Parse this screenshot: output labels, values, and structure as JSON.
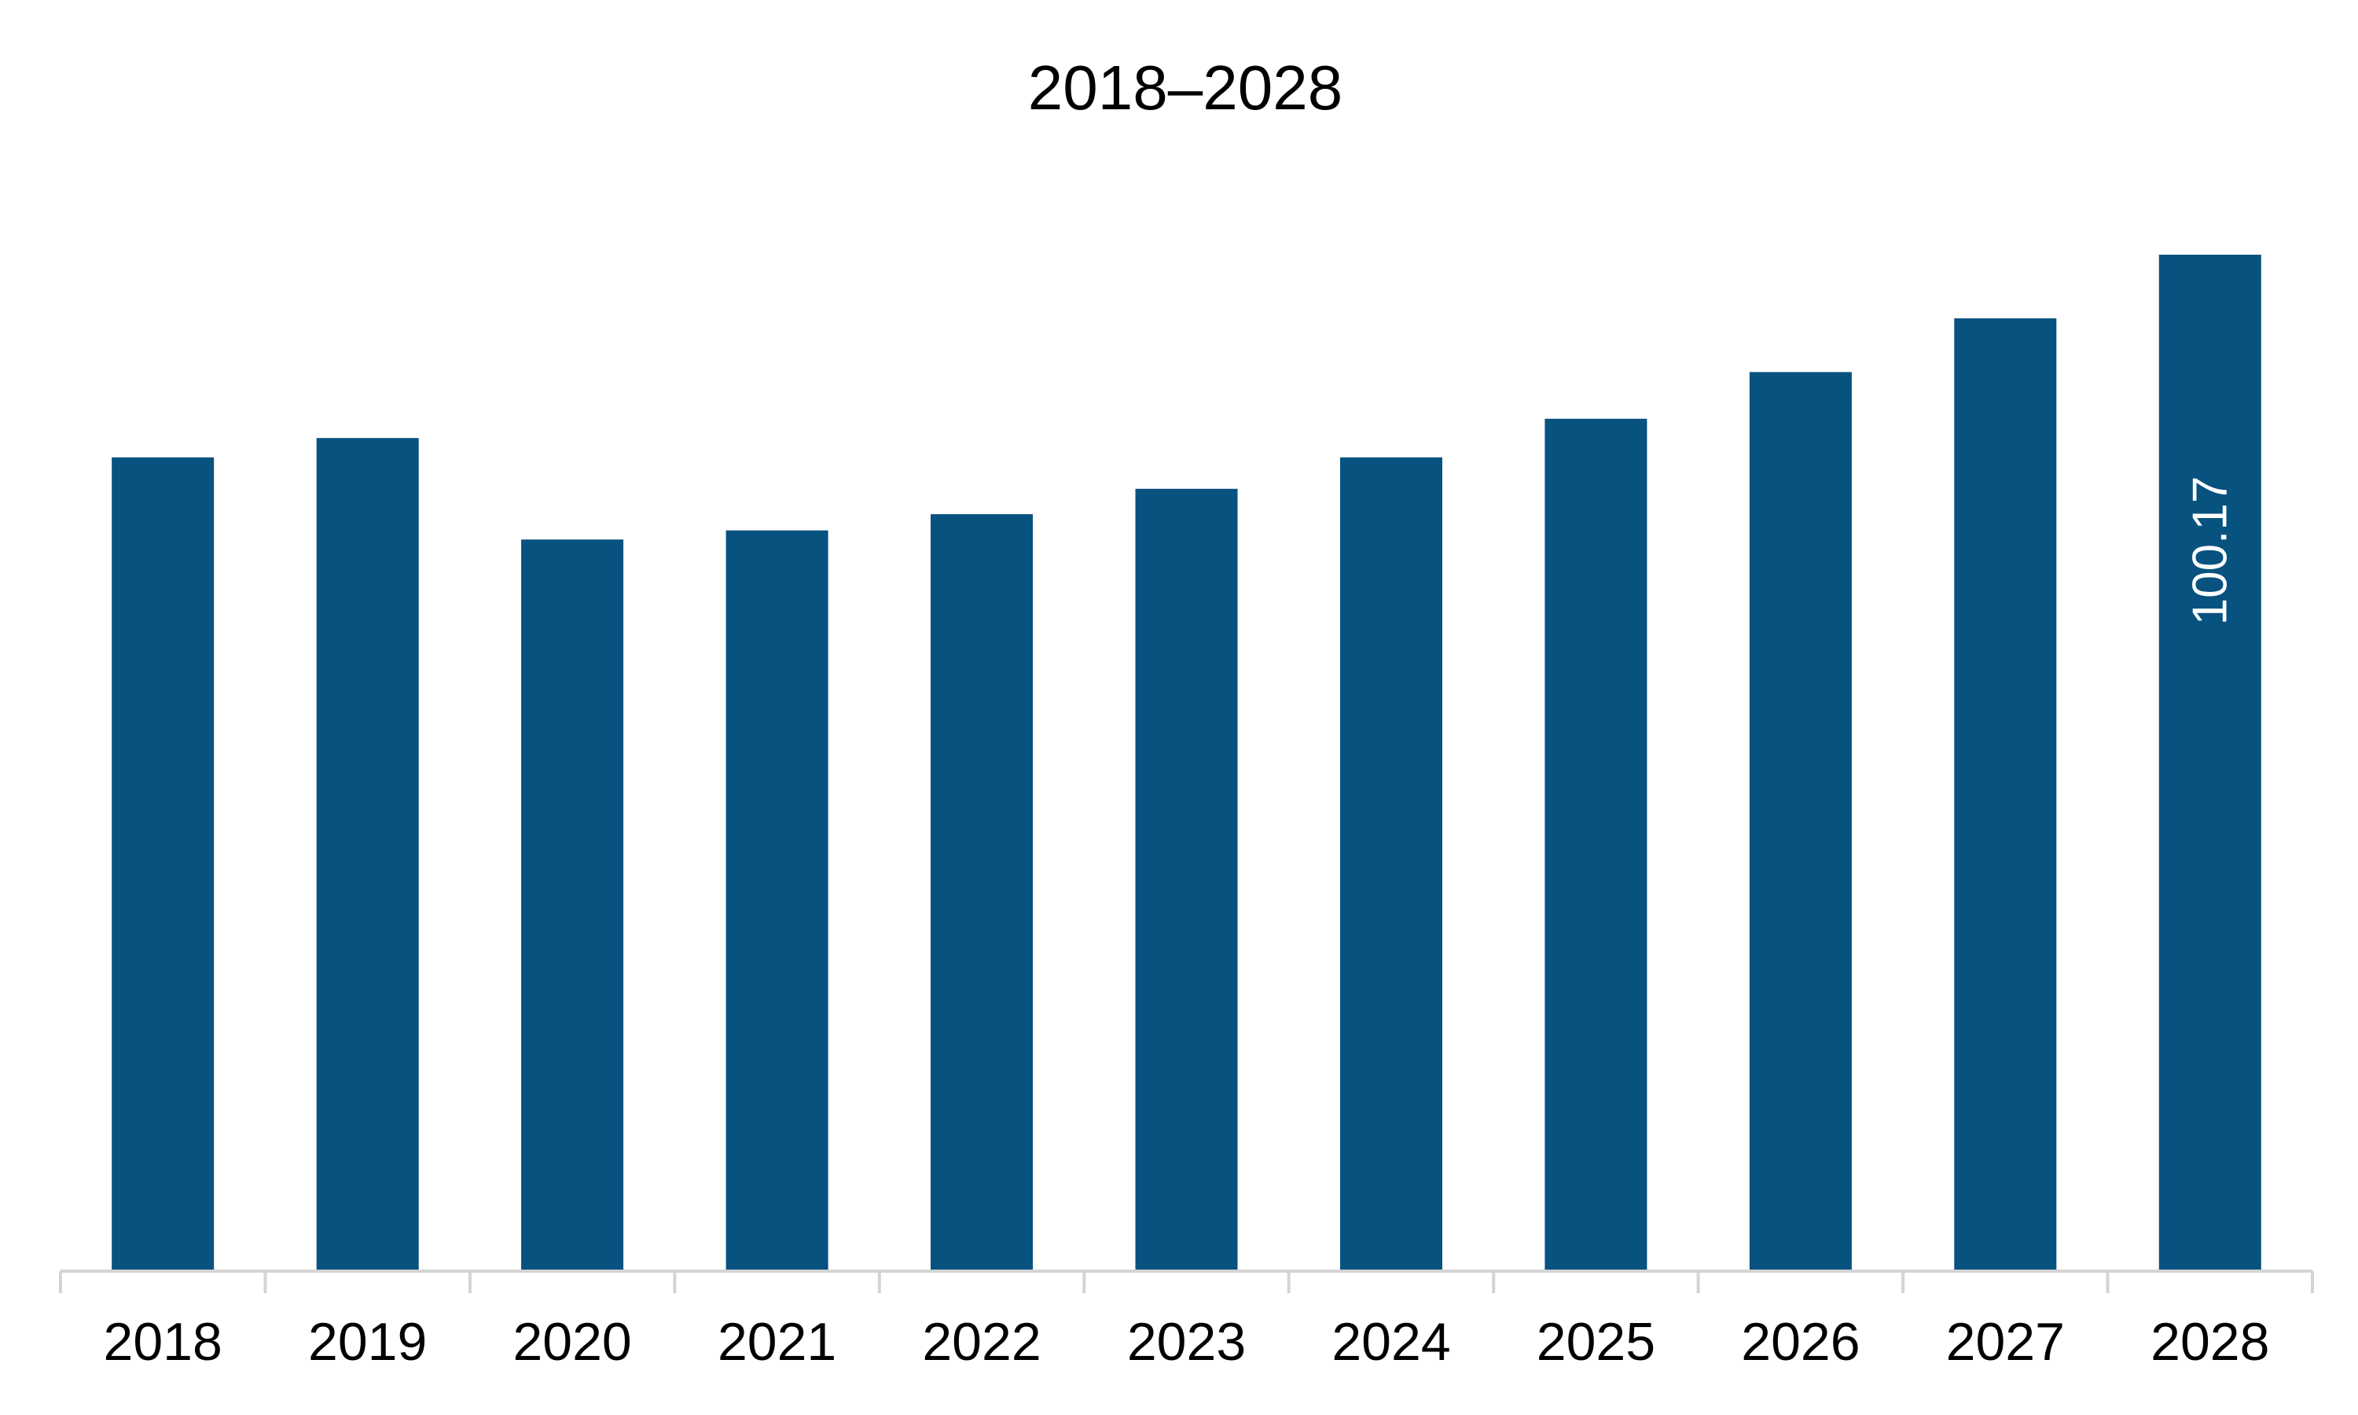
{
  "chart_data": {
    "type": "bar",
    "title": "2018–2028",
    "categories": [
      "2018",
      "2019",
      "2020",
      "2021",
      "2022",
      "2023",
      "2024",
      "2025",
      "2026",
      "2027",
      "2028"
    ],
    "values": [
      80.2,
      82.1,
      72.1,
      73.0,
      74.6,
      77.1,
      80.2,
      84.0,
      88.6,
      93.9,
      100.17
    ],
    "data_labels": [
      {
        "index": 10,
        "text": "100.17",
        "orientation": "vertical"
      }
    ],
    "ylim": [
      0,
      100.17
    ],
    "bar_color": "#08527f",
    "axis_color": "#d4d4d4",
    "grid": false,
    "legend": "none",
    "xlabel": "",
    "ylabel": ""
  }
}
